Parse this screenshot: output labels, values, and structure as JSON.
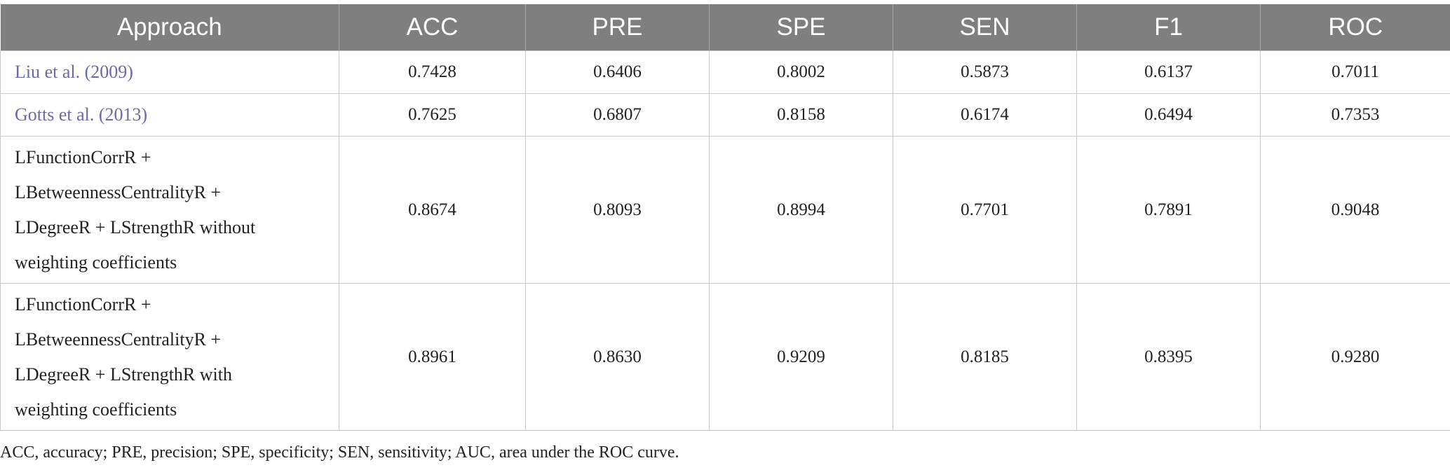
{
  "table": {
    "headers": [
      "Approach",
      "ACC",
      "PRE",
      "SPE",
      "SEN",
      "F1",
      "ROC"
    ],
    "rows": [
      {
        "approach_lines": [
          "Liu et al. (2009)"
        ],
        "is_link": true,
        "values": [
          "0.7428",
          "0.6406",
          "0.8002",
          "0.5873",
          "0.6137",
          "0.7011"
        ]
      },
      {
        "approach_lines": [
          "Gotts et al. (2013)"
        ],
        "is_link": true,
        "values": [
          "0.7625",
          "0.6807",
          "0.8158",
          "0.6174",
          "0.6494",
          "0.7353"
        ]
      },
      {
        "approach_lines": [
          "LFunctionCorrR +",
          "LBetweennessCentralityR +",
          "LDegreeR + LStrengthR without",
          "weighting coefficients"
        ],
        "is_link": false,
        "values": [
          "0.8674",
          "0.8093",
          "0.8994",
          "0.7701",
          "0.7891",
          "0.9048"
        ]
      },
      {
        "approach_lines": [
          "LFunctionCorrR +",
          "LBetweennessCentralityR +",
          "LDegreeR + LStrengthR with",
          "weighting coefficients"
        ],
        "is_link": false,
        "values": [
          "0.8961",
          "0.8630",
          "0.9209",
          "0.8185",
          "0.8395",
          "0.9280"
        ]
      }
    ]
  },
  "footnote": "ACC, accuracy; PRE, precision; SPE, specificity; SEN, sensitivity; AUC, area under the ROC curve.",
  "colors": {
    "header_background": "#7f7f7f",
    "header_text": "#ffffff",
    "link_text": "#6a6aaa",
    "border": "#c8c8c8"
  }
}
